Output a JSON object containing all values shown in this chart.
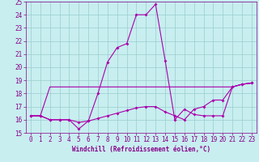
{
  "xlabel": "Windchill (Refroidissement éolien,°C)",
  "xlim": [
    -0.5,
    23.5
  ],
  "ylim": [
    15,
    25
  ],
  "xticks": [
    0,
    1,
    2,
    3,
    4,
    5,
    6,
    7,
    8,
    9,
    10,
    11,
    12,
    13,
    14,
    15,
    16,
    17,
    18,
    19,
    20,
    21,
    22,
    23
  ],
  "yticks": [
    15,
    16,
    17,
    18,
    19,
    20,
    21,
    22,
    23,
    24,
    25
  ],
  "background_color": "#c8eef0",
  "line_color": "#aa00aa",
  "grid_color": "#99cccc",
  "series1_x": [
    0,
    1,
    2,
    3,
    4,
    5,
    6,
    7,
    8,
    9,
    10,
    11,
    12,
    13,
    14,
    15,
    16,
    17,
    18,
    19,
    20,
    21,
    22,
    23
  ],
  "series1_y": [
    16.3,
    16.3,
    16.0,
    16.0,
    16.0,
    15.3,
    15.9,
    18.0,
    20.4,
    21.5,
    21.8,
    24.0,
    24.0,
    24.8,
    20.5,
    16.0,
    16.8,
    16.4,
    16.3,
    16.3,
    16.3,
    18.5,
    18.7,
    18.8
  ],
  "series2_x": [
    0,
    1,
    2,
    3,
    4,
    5,
    6,
    7,
    8,
    9,
    10,
    11,
    12,
    13,
    14,
    15,
    16,
    17,
    18,
    19,
    20,
    21,
    22,
    23
  ],
  "series2_y": [
    16.3,
    16.3,
    18.5,
    18.5,
    18.5,
    18.5,
    18.5,
    18.5,
    18.5,
    18.5,
    18.5,
    18.5,
    18.5,
    18.5,
    18.5,
    18.5,
    18.5,
    18.5,
    18.5,
    18.5,
    18.5,
    18.5,
    18.7,
    18.8
  ],
  "series3_x": [
    0,
    1,
    2,
    3,
    4,
    5,
    6,
    7,
    8,
    9,
    10,
    11,
    12,
    13,
    14,
    15,
    16,
    17,
    18,
    19,
    20,
    21,
    22,
    23
  ],
  "series3_y": [
    16.3,
    16.3,
    16.0,
    16.0,
    16.0,
    15.8,
    15.9,
    16.1,
    16.3,
    16.5,
    16.7,
    16.9,
    17.0,
    17.0,
    16.6,
    16.3,
    16.0,
    16.8,
    17.0,
    17.5,
    17.5,
    18.5,
    18.7,
    18.8
  ],
  "tick_fontsize": 5.5,
  "label_fontsize": 5.5,
  "tick_color": "#880088",
  "spine_color": "#880088"
}
